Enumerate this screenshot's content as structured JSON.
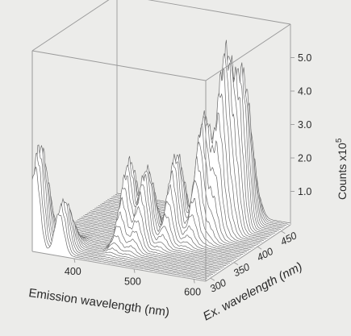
{
  "chart_data": {
    "type": "surface",
    "title": "",
    "x_axis": {
      "label": "Emission wavelength (nm)",
      "range": [
        330,
        620
      ],
      "ticks": [
        "400",
        "500",
        "600"
      ]
    },
    "y_axis": {
      "label": "Ex. wavelength (nm)",
      "range": [
        290,
        470
      ],
      "ticks": [
        "300",
        "350",
        "400",
        "450"
      ]
    },
    "z_axis": {
      "label": "Counts x10",
      "label_superscript": "5",
      "range": [
        0,
        6
      ],
      "ticks": [
        "1.0",
        "2.0",
        "3.0",
        "4.0",
        "5.0"
      ]
    },
    "peaks": [
      {
        "emission_nm": 335,
        "excitation_nm": 300,
        "counts_e5": 3.0
      },
      {
        "emission_nm": 375,
        "excitation_nm": 300,
        "counts_e5": 1.5
      },
      {
        "emission_nm": 445,
        "excitation_nm": 350,
        "counts_e5": 2.4
      },
      {
        "emission_nm": 470,
        "excitation_nm": 355,
        "counts_e5": 2.2
      },
      {
        "emission_nm": 500,
        "excitation_nm": 380,
        "counts_e5": 2.5
      },
      {
        "emission_nm": 530,
        "excitation_nm": 400,
        "counts_e5": 3.5
      },
      {
        "emission_nm": 550,
        "excitation_nm": 420,
        "counts_e5": 5.0
      },
      {
        "emission_nm": 565,
        "excitation_nm": 440,
        "counts_e5": 4.2
      }
    ],
    "grid": false,
    "style": "3d waterfall of emission spectra with bounding box"
  }
}
